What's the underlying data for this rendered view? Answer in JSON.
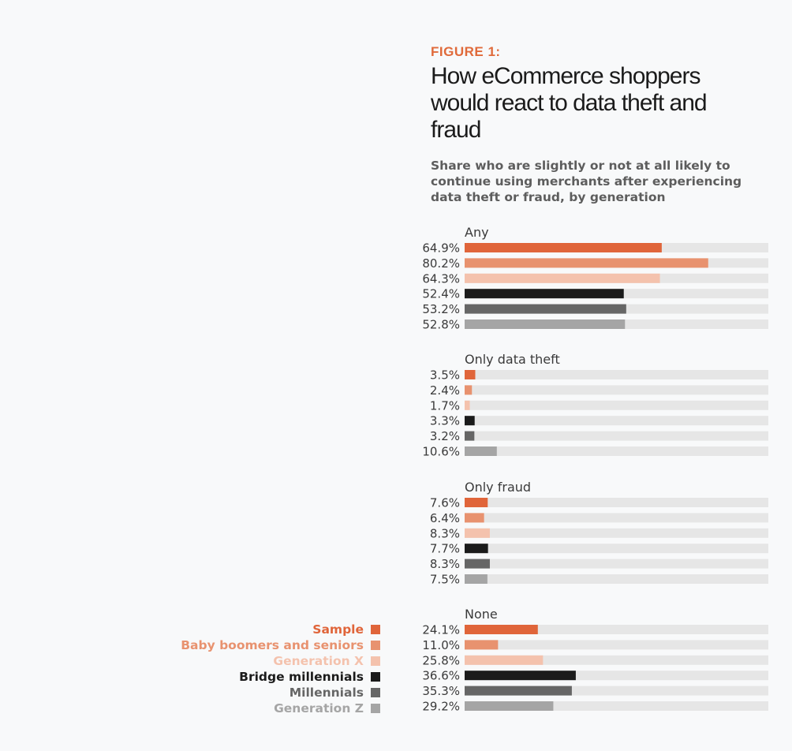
{
  "figure": {
    "label": "FIGURE 1:",
    "title": "How eCommerce shoppers would react to data theft and fraud",
    "subtitle": "Share who are slightly or not at all likely to continue using merchants after experiencing data theft or fraud, by generation"
  },
  "colors": {
    "sample": "#e0653a",
    "baby_boomers": "#e8926f",
    "gen_x": "#f4c2ad",
    "bridge_millennials": "#1b1b1b",
    "millennials": "#666666",
    "gen_z": "#a5a5a5",
    "track": "#e6e6e6"
  },
  "chart_data": {
    "type": "bar",
    "orientation": "horizontal",
    "xlim": [
      0,
      100
    ],
    "unit": "%",
    "groups": [
      {
        "name": "Any",
        "values": [
          64.9,
          80.2,
          64.3,
          52.4,
          53.2,
          52.8
        ],
        "labels": [
          "64.9%",
          "80.2%",
          "64.3%",
          "52.4%",
          "53.2%",
          "52.8%"
        ]
      },
      {
        "name": "Only data theft",
        "values": [
          3.5,
          2.4,
          1.7,
          3.3,
          3.2,
          10.6
        ],
        "labels": [
          "3.5%",
          "2.4%",
          "1.7%",
          "3.3%",
          "3.2%",
          "10.6%"
        ]
      },
      {
        "name": "Only fraud",
        "values": [
          7.6,
          6.4,
          8.3,
          7.7,
          8.3,
          7.5
        ],
        "labels": [
          "7.6%",
          "6.4%",
          "8.3%",
          "7.7%",
          "8.3%",
          "7.5%"
        ]
      },
      {
        "name": "None",
        "values": [
          24.1,
          11.0,
          25.8,
          36.6,
          35.3,
          29.2
        ],
        "labels": [
          "24.1%",
          "11.0%",
          "25.8%",
          "36.6%",
          "35.3%",
          "29.2%"
        ]
      }
    ],
    "series": [
      {
        "name": "Sample",
        "color": "#e0653a"
      },
      {
        "name": "Baby boomers and seniors",
        "color": "#e8926f"
      },
      {
        "name": "Generation X",
        "color": "#f4c2ad"
      },
      {
        "name": "Bridge millennials",
        "color": "#1b1b1b"
      },
      {
        "name": "Millennials",
        "color": "#666666"
      },
      {
        "name": "Generation Z",
        "color": "#a5a5a5"
      }
    ],
    "legend_position": "bottom-left"
  }
}
